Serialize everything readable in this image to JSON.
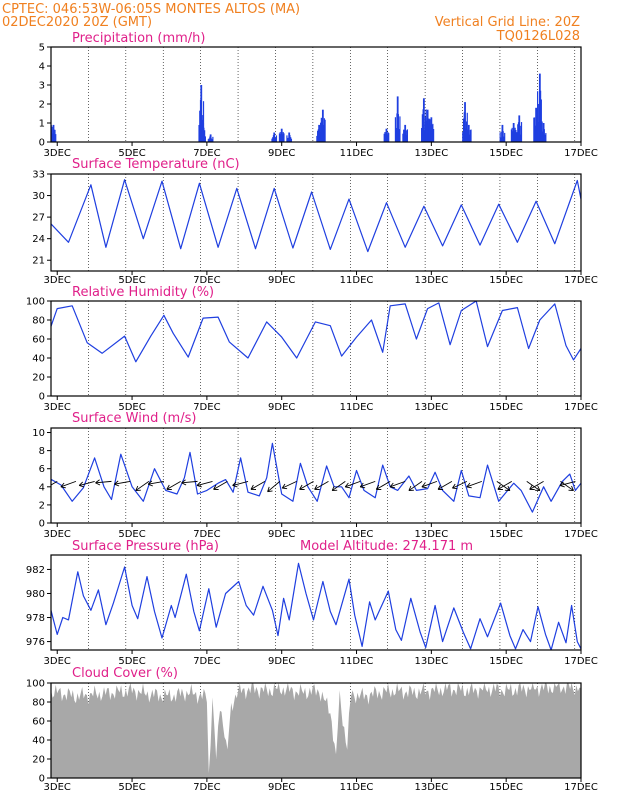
{
  "header": {
    "line1": "CPTEC:   046:53W-06:05S   MONTES ALTOS (MA)",
    "line2": "02DEC2020 20Z (GMT)",
    "grid_note": "Vertical Grid Line: 20Z",
    "code": "TQ0126L028"
  },
  "colors": {
    "header": "#f08020",
    "title": "#e0208a",
    "series": "#1f3fe0",
    "cloud": "#a8a8a8",
    "grid": "#000000"
  },
  "x_axis": {
    "start": "2020-12-02T20:00Z",
    "end": "2020-12-17T00:00Z",
    "tick_labels": [
      "3DEC",
      "5DEC",
      "7DEC",
      "9DEC",
      "11DEC",
      "13DEC",
      "15DEC",
      "17DEC"
    ],
    "tick_days": [
      3,
      5,
      7,
      9,
      11,
      13,
      15,
      17
    ]
  },
  "chart_data": [
    {
      "id": "precip",
      "type": "bar",
      "title": "Precipitation (mm/h)",
      "ylim": [
        0,
        5
      ],
      "yticks": [
        0,
        1,
        2,
        3,
        4,
        5
      ],
      "vertical_grid": "20Z daily",
      "events": [
        {
          "day": 2.05,
          "value": 0.9
        },
        {
          "day": 2.2,
          "value": 0.6
        },
        {
          "day": 2.5,
          "value": 1.0
        },
        {
          "day": 2.6,
          "value": 1.5
        },
        {
          "day": 2.68,
          "value": 1.4
        },
        {
          "day": 2.75,
          "value": 1.6
        },
        {
          "day": 2.82,
          "value": 1.2
        },
        {
          "day": 2.9,
          "value": 0.9
        },
        {
          "day": 6.85,
          "value": 3.0
        },
        {
          "day": 6.9,
          "value": 1.0
        },
        {
          "day": 7.1,
          "value": 0.4
        },
        {
          "day": 8.8,
          "value": 0.5
        },
        {
          "day": 9.0,
          "value": 0.7
        },
        {
          "day": 9.2,
          "value": 0.5
        },
        {
          "day": 10.0,
          "value": 0.9
        },
        {
          "day": 10.1,
          "value": 1.7
        },
        {
          "day": 11.8,
          "value": 0.7
        },
        {
          "day": 12.1,
          "value": 2.4
        },
        {
          "day": 12.3,
          "value": 0.9
        },
        {
          "day": 12.8,
          "value": 2.3
        },
        {
          "day": 12.9,
          "value": 1.7
        },
        {
          "day": 13.0,
          "value": 1.3
        },
        {
          "day": 13.9,
          "value": 2.1
        },
        {
          "day": 14.0,
          "value": 0.9
        },
        {
          "day": 14.9,
          "value": 0.9
        },
        {
          "day": 15.2,
          "value": 1.0
        },
        {
          "day": 15.35,
          "value": 1.4
        },
        {
          "day": 15.9,
          "value": 3.6
        },
        {
          "day": 15.8,
          "value": 1.8
        },
        {
          "day": 16.0,
          "value": 1.0
        }
      ]
    },
    {
      "id": "temp",
      "type": "line",
      "title": "Surface Temperature (nC)",
      "ylim": [
        19.5,
        33
      ],
      "yticks": [
        21,
        24,
        27,
        30,
        33
      ],
      "maxima": [
        [
          2.55,
          27.6
        ],
        [
          3.9,
          31.5
        ],
        [
          4.8,
          32.2
        ],
        [
          5.8,
          32.0
        ],
        [
          6.8,
          31.7
        ],
        [
          7.8,
          31.0
        ],
        [
          8.8,
          31.0
        ],
        [
          9.8,
          30.5
        ],
        [
          10.8,
          29.5
        ],
        [
          11.8,
          29.0
        ],
        [
          12.8,
          28.5
        ],
        [
          13.8,
          28.7
        ],
        [
          14.8,
          28.8
        ],
        [
          15.8,
          29.2
        ],
        [
          16.9,
          32.1
        ]
      ],
      "minima": [
        [
          2.0,
          24.0
        ],
        [
          2.3,
          20.5
        ],
        [
          3.3,
          23.5
        ],
        [
          4.3,
          22.8
        ],
        [
          5.3,
          24.0
        ],
        [
          6.3,
          22.6
        ],
        [
          7.3,
          22.8
        ],
        [
          8.3,
          22.6
        ],
        [
          9.3,
          22.7
        ],
        [
          10.3,
          22.5
        ],
        [
          11.3,
          22.2
        ],
        [
          12.3,
          22.8
        ],
        [
          13.3,
          23.0
        ],
        [
          14.3,
          23.1
        ],
        [
          15.3,
          23.5
        ],
        [
          16.3,
          23.3
        ],
        [
          17.0,
          29.5
        ]
      ]
    },
    {
      "id": "rh",
      "type": "line",
      "title": "Relative Humidity (%)",
      "ylim": [
        0,
        100
      ],
      "yticks": [
        0,
        20,
        40,
        60,
        80,
        100
      ],
      "points": [
        [
          2.0,
          72
        ],
        [
          2.35,
          96
        ],
        [
          2.6,
          84
        ],
        [
          2.75,
          64
        ],
        [
          3.0,
          92
        ],
        [
          3.4,
          95
        ],
        [
          3.8,
          56
        ],
        [
          4.2,
          45
        ],
        [
          4.8,
          63
        ],
        [
          5.1,
          36
        ],
        [
          5.5,
          63
        ],
        [
          5.85,
          85
        ],
        [
          6.1,
          66
        ],
        [
          6.5,
          41
        ],
        [
          6.9,
          82
        ],
        [
          7.3,
          83
        ],
        [
          7.6,
          57
        ],
        [
          8.1,
          40
        ],
        [
          8.6,
          78
        ],
        [
          9.0,
          62
        ],
        [
          9.4,
          40
        ],
        [
          9.9,
          78
        ],
        [
          10.3,
          74
        ],
        [
          10.6,
          42
        ],
        [
          11.0,
          62
        ],
        [
          11.4,
          80
        ],
        [
          11.7,
          46
        ],
        [
          11.9,
          95
        ],
        [
          12.3,
          97
        ],
        [
          12.6,
          60
        ],
        [
          12.9,
          92
        ],
        [
          13.2,
          98
        ],
        [
          13.5,
          54
        ],
        [
          13.8,
          90
        ],
        [
          14.2,
          100
        ],
        [
          14.5,
          52
        ],
        [
          14.9,
          90
        ],
        [
          15.3,
          93
        ],
        [
          15.6,
          50
        ],
        [
          15.9,
          80
        ],
        [
          16.3,
          97
        ],
        [
          16.6,
          53
        ],
        [
          16.8,
          38
        ],
        [
          17.0,
          50
        ]
      ]
    },
    {
      "id": "wind",
      "type": "line",
      "title": "Surface Wind (m/s)",
      "ylim": [
        0,
        10.5
      ],
      "yticks": [
        0,
        2,
        4,
        6,
        8,
        10
      ],
      "points": [
        [
          2.0,
          2.0
        ],
        [
          2.3,
          3.5
        ],
        [
          2.6,
          2.5
        ],
        [
          2.85,
          4.8
        ],
        [
          3.1,
          4.2
        ],
        [
          3.4,
          2.4
        ],
        [
          3.7,
          3.9
        ],
        [
          4.0,
          7.2
        ],
        [
          4.25,
          4.0
        ],
        [
          4.45,
          2.6
        ],
        [
          4.7,
          7.6
        ],
        [
          5.0,
          4.0
        ],
        [
          5.3,
          2.4
        ],
        [
          5.6,
          6.0
        ],
        [
          5.9,
          3.6
        ],
        [
          6.2,
          3.2
        ],
        [
          6.4,
          5.0
        ],
        [
          6.55,
          7.8
        ],
        [
          6.75,
          3.2
        ],
        [
          7.0,
          3.6
        ],
        [
          7.3,
          4.4
        ],
        [
          7.5,
          4.8
        ],
        [
          7.7,
          3.4
        ],
        [
          7.9,
          7.2
        ],
        [
          8.1,
          3.4
        ],
        [
          8.4,
          3.0
        ],
        [
          8.6,
          5.0
        ],
        [
          8.75,
          8.8
        ],
        [
          9.0,
          3.2
        ],
        [
          9.3,
          2.4
        ],
        [
          9.5,
          6.6
        ],
        [
          9.7,
          4.0
        ],
        [
          9.95,
          2.4
        ],
        [
          10.2,
          6.3
        ],
        [
          10.4,
          4.0
        ],
        [
          10.6,
          4.0
        ],
        [
          10.8,
          2.8
        ],
        [
          11.0,
          5.8
        ],
        [
          11.2,
          3.6
        ],
        [
          11.5,
          2.8
        ],
        [
          11.7,
          6.4
        ],
        [
          11.9,
          4.0
        ],
        [
          12.1,
          3.6
        ],
        [
          12.4,
          5.2
        ],
        [
          12.6,
          3.6
        ],
        [
          12.9,
          3.8
        ],
        [
          13.1,
          5.6
        ],
        [
          13.3,
          3.6
        ],
        [
          13.6,
          2.4
        ],
        [
          13.8,
          5.8
        ],
        [
          14.0,
          3.0
        ],
        [
          14.3,
          2.8
        ],
        [
          14.5,
          6.4
        ],
        [
          14.8,
          2.4
        ],
        [
          15.2,
          4.4
        ],
        [
          15.4,
          3.6
        ],
        [
          15.7,
          1.2
        ],
        [
          16.0,
          4.0
        ],
        [
          16.2,
          2.4
        ],
        [
          16.5,
          4.6
        ],
        [
          16.7,
          5.4
        ],
        [
          16.85,
          3.6
        ],
        [
          17.0,
          4.4
        ]
      ],
      "arrows": [
        [
          2.15,
          90,
          130
        ],
        [
          2.55,
          90,
          145
        ],
        [
          3.0,
          90,
          150
        ],
        [
          3.5,
          90,
          160
        ],
        [
          4.0,
          90,
          165
        ],
        [
          4.45,
          90,
          175
        ],
        [
          4.95,
          90,
          170
        ],
        [
          5.45,
          90,
          145
        ],
        [
          5.85,
          90,
          170
        ],
        [
          6.3,
          90,
          150
        ],
        [
          6.75,
          90,
          175
        ],
        [
          7.15,
          90,
          165
        ],
        [
          7.55,
          90,
          150
        ],
        [
          8.1,
          90,
          165
        ],
        [
          8.55,
          90,
          150
        ],
        [
          8.95,
          90,
          140
        ],
        [
          9.4,
          90,
          155
        ],
        [
          9.85,
          90,
          150
        ],
        [
          10.25,
          90,
          150
        ],
        [
          10.7,
          90,
          145
        ],
        [
          11.1,
          90,
          160
        ],
        [
          11.5,
          90,
          160
        ],
        [
          11.9,
          90,
          150
        ],
        [
          12.3,
          90,
          160
        ],
        [
          12.75,
          90,
          145
        ],
        [
          13.15,
          90,
          160
        ],
        [
          13.55,
          90,
          150
        ],
        [
          13.95,
          90,
          155
        ],
        [
          14.35,
          90,
          160
        ],
        [
          14.75,
          90,
          35
        ],
        [
          15.15,
          90,
          150
        ],
        [
          15.55,
          90,
          35
        ],
        [
          16.0,
          90,
          150
        ],
        [
          16.45,
          90,
          35
        ],
        [
          16.85,
          90,
          165
        ]
      ]
    },
    {
      "id": "pressure",
      "type": "line",
      "title": "Surface Pressure (hPa)",
      "note": "Model Altitude: 274.171 m",
      "ylim": [
        975.3,
        983.2
      ],
      "yticks": [
        976,
        978,
        980,
        982
      ],
      "points": [
        [
          2.0,
          978.5
        ],
        [
          2.1,
          979.2
        ],
        [
          2.3,
          979.0
        ],
        [
          2.55,
          980.4
        ],
        [
          2.7,
          980.2
        ],
        [
          3.0,
          976.6
        ],
        [
          3.15,
          978.0
        ],
        [
          3.3,
          977.8
        ],
        [
          3.55,
          981.8
        ],
        [
          3.7,
          979.8
        ],
        [
          3.9,
          978.6
        ],
        [
          4.1,
          980.3
        ],
        [
          4.3,
          977.4
        ],
        [
          4.5,
          979.2
        ],
        [
          4.8,
          982.2
        ],
        [
          5.0,
          979.0
        ],
        [
          5.15,
          977.9
        ],
        [
          5.4,
          981.4
        ],
        [
          5.6,
          978.5
        ],
        [
          5.8,
          976.3
        ],
        [
          6.05,
          979.0
        ],
        [
          6.15,
          978.0
        ],
        [
          6.45,
          981.6
        ],
        [
          6.65,
          978.5
        ],
        [
          6.8,
          976.9
        ],
        [
          7.05,
          980.4
        ],
        [
          7.25,
          977.2
        ],
        [
          7.5,
          980.0
        ],
        [
          7.85,
          981.0
        ],
        [
          8.05,
          979.0
        ],
        [
          8.25,
          978.2
        ],
        [
          8.5,
          980.6
        ],
        [
          8.75,
          978.6
        ],
        [
          8.9,
          976.5
        ],
        [
          9.05,
          979.6
        ],
        [
          9.2,
          977.8
        ],
        [
          9.45,
          982.5
        ],
        [
          9.65,
          980.0
        ],
        [
          9.85,
          977.8
        ],
        [
          10.1,
          981.0
        ],
        [
          10.3,
          978.5
        ],
        [
          10.45,
          977.4
        ],
        [
          10.8,
          981.2
        ],
        [
          10.95,
          978.2
        ],
        [
          11.15,
          975.6
        ],
        [
          11.35,
          979.3
        ],
        [
          11.5,
          977.8
        ],
        [
          11.85,
          980.2
        ],
        [
          12.05,
          977.0
        ],
        [
          12.2,
          976.1
        ],
        [
          12.45,
          979.6
        ],
        [
          12.7,
          976.8
        ],
        [
          12.85,
          975.5
        ],
        [
          13.1,
          979.0
        ],
        [
          13.3,
          976.0
        ],
        [
          13.6,
          978.8
        ],
        [
          13.85,
          976.8
        ],
        [
          14.05,
          975.4
        ],
        [
          14.3,
          977.9
        ],
        [
          14.5,
          976.4
        ],
        [
          14.85,
          979.2
        ],
        [
          15.1,
          976.5
        ],
        [
          15.25,
          975.4
        ],
        [
          15.45,
          977.0
        ],
        [
          15.65,
          976.0
        ],
        [
          15.85,
          978.9
        ],
        [
          16.05,
          976.6
        ],
        [
          16.2,
          975.3
        ],
        [
          16.4,
          977.6
        ],
        [
          16.6,
          975.9
        ],
        [
          16.75,
          979.0
        ],
        [
          16.9,
          976.0
        ],
        [
          17.0,
          975.4
        ]
      ]
    },
    {
      "id": "cloud",
      "type": "area",
      "title": "Cloud Cover (%)",
      "ylim": [
        0,
        100
      ],
      "yticks": [
        0,
        20,
        40,
        60,
        80,
        100
      ],
      "levels": [
        [
          2.0,
          80
        ],
        [
          2.2,
          88
        ],
        [
          2.5,
          92
        ],
        [
          3.0,
          90
        ],
        [
          3.5,
          86
        ],
        [
          4.0,
          88
        ],
        [
          4.5,
          90
        ],
        [
          5.0,
          92
        ],
        [
          5.5,
          88
        ],
        [
          6.0,
          86
        ],
        [
          6.5,
          90
        ],
        [
          7.0,
          85
        ],
        [
          7.05,
          5
        ],
        [
          7.15,
          82
        ],
        [
          7.25,
          20
        ],
        [
          7.35,
          78
        ],
        [
          7.55,
          30
        ],
        [
          7.65,
          75
        ],
        [
          7.8,
          90
        ],
        [
          8.2,
          94
        ],
        [
          8.6,
          92
        ],
        [
          9.0,
          94
        ],
        [
          9.5,
          90
        ],
        [
          10.0,
          92
        ],
        [
          10.3,
          70
        ],
        [
          10.45,
          25
        ],
        [
          10.55,
          85
        ],
        [
          10.75,
          30
        ],
        [
          10.85,
          88
        ],
        [
          11.2,
          86
        ],
        [
          11.6,
          90
        ],
        [
          12.0,
          92
        ],
        [
          12.5,
          90
        ],
        [
          13.0,
          92
        ],
        [
          13.5,
          94
        ],
        [
          14.0,
          92
        ],
        [
          14.5,
          94
        ],
        [
          15.0,
          92
        ],
        [
          15.5,
          94
        ],
        [
          16.0,
          95
        ],
        [
          16.5,
          96
        ],
        [
          17.0,
          95
        ]
      ]
    }
  ]
}
